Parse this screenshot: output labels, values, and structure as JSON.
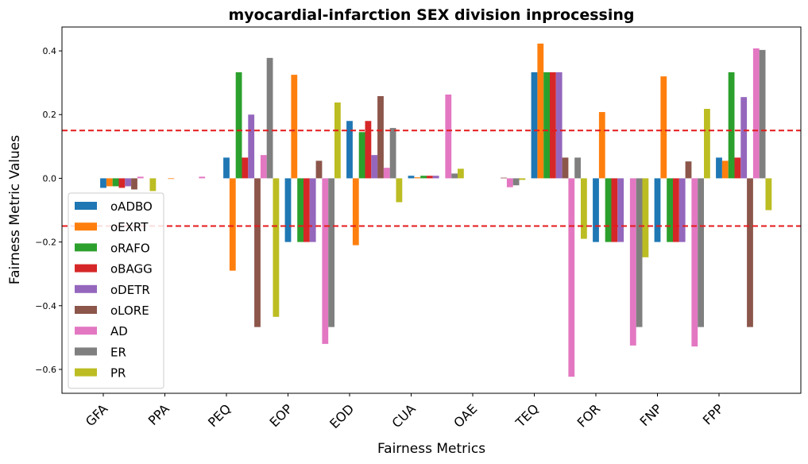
{
  "chart_data": {
    "type": "bar",
    "title": "myocardial-infarction SEX division inprocessing",
    "xlabel": "Fairness Metrics",
    "ylabel": "Fairness Metric Values",
    "categories": [
      "GFA",
      "PPA",
      "PEQ",
      "EOP",
      "EOD",
      "CUA",
      "OAE",
      "TEQ",
      "FOR",
      "FNP",
      "FPP"
    ],
    "ylim": [
      -0.675,
      0.475
    ],
    "yticks": [
      -0.6,
      -0.4,
      -0.2,
      0.0,
      0.2,
      0.4
    ],
    "ytick_labels": [
      "−0.6",
      "−0.4",
      "−0.2",
      "0.0",
      "0.2",
      "0.4"
    ],
    "threshold_lines": [
      0.15,
      -0.15
    ],
    "threshold_color": "#e41a1c",
    "legend_position": "lower-left",
    "grid": false,
    "series": [
      {
        "name": "oADBO",
        "color": "#1f77b4",
        "values": [
          -0.03,
          0.0,
          0.065,
          -0.2,
          0.18,
          0.008,
          0.0,
          0.333,
          -0.2,
          -0.2,
          0.065
        ]
      },
      {
        "name": "oEXRT",
        "color": "#ff7f0e",
        "values": [
          -0.025,
          -0.002,
          -0.29,
          0.325,
          -0.21,
          0.003,
          0.0,
          0.423,
          0.208,
          0.32,
          0.055
        ]
      },
      {
        "name": "oRAFO",
        "color": "#2ca02c",
        "values": [
          -0.025,
          0.0,
          0.333,
          -0.2,
          0.145,
          0.008,
          0.0,
          0.333,
          -0.2,
          -0.2,
          0.333
        ]
      },
      {
        "name": "oBAGG",
        "color": "#d62728",
        "values": [
          -0.03,
          0.0,
          0.065,
          -0.2,
          0.18,
          0.008,
          0.0,
          0.333,
          -0.2,
          -0.2,
          0.065
        ]
      },
      {
        "name": "oDETR",
        "color": "#9467bd",
        "values": [
          -0.025,
          0.0,
          0.2,
          -0.2,
          0.073,
          0.008,
          0.0,
          0.333,
          -0.2,
          -0.2,
          0.255
        ]
      },
      {
        "name": "oLORE",
        "color": "#8c564b",
        "values": [
          -0.035,
          0.0,
          -0.467,
          0.055,
          0.258,
          0.0,
          0.002,
          0.065,
          0.0,
          0.053,
          -0.467
        ]
      },
      {
        "name": "AD",
        "color": "#e377c2",
        "values": [
          0.005,
          0.005,
          0.073,
          -0.52,
          0.033,
          0.263,
          -0.028,
          -0.623,
          -0.525,
          -0.528,
          0.408
        ]
      },
      {
        "name": "ER",
        "color": "#7f7f7f",
        "values": [
          0.0,
          0.0,
          0.378,
          -0.467,
          0.158,
          0.015,
          -0.022,
          0.065,
          -0.467,
          -0.467,
          0.403
        ]
      },
      {
        "name": "PR",
        "color": "#bcbd22",
        "values": [
          -0.04,
          0.0,
          -0.435,
          0.238,
          -0.075,
          0.03,
          -0.005,
          -0.19,
          -0.248,
          0.218,
          -0.1
        ]
      }
    ]
  }
}
